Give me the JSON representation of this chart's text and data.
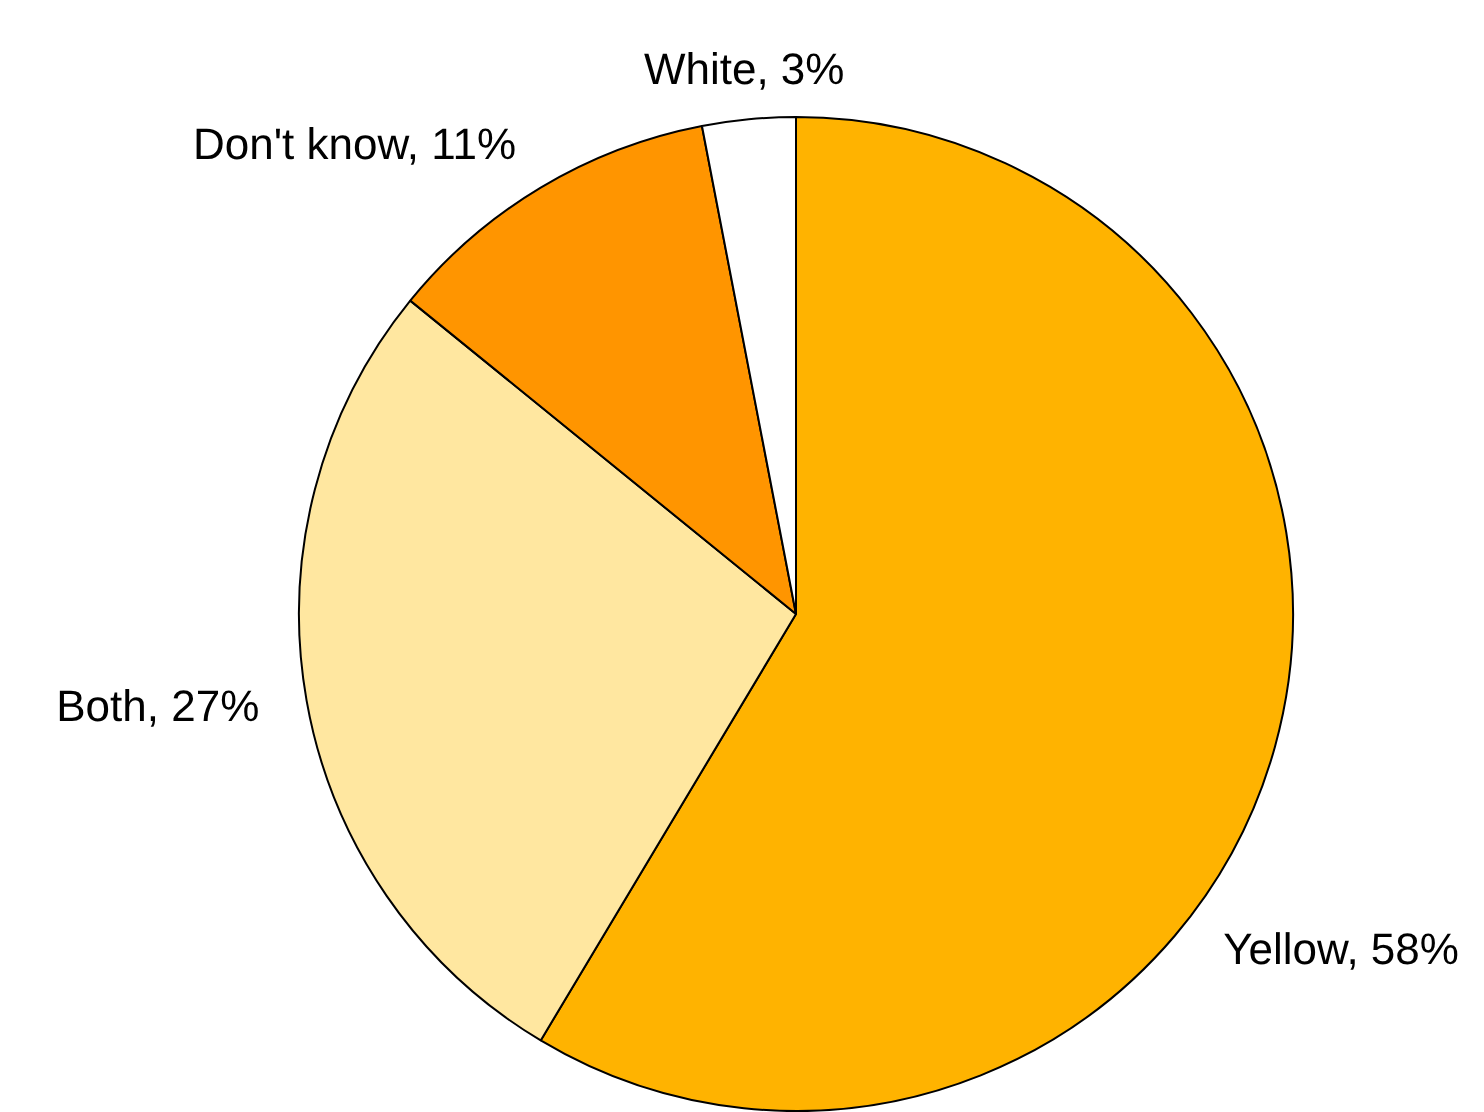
{
  "chart_data": {
    "type": "pie",
    "categories": [
      "Yellow",
      "Both",
      "Don't know",
      "White"
    ],
    "values": [
      58,
      27,
      11,
      3
    ],
    "value_labels": [
      "58%",
      "27%",
      "11%",
      "3%"
    ],
    "colors": [
      "#ffb300",
      "#ffe7a0",
      "#ff9500",
      "#ffffff"
    ]
  }
}
